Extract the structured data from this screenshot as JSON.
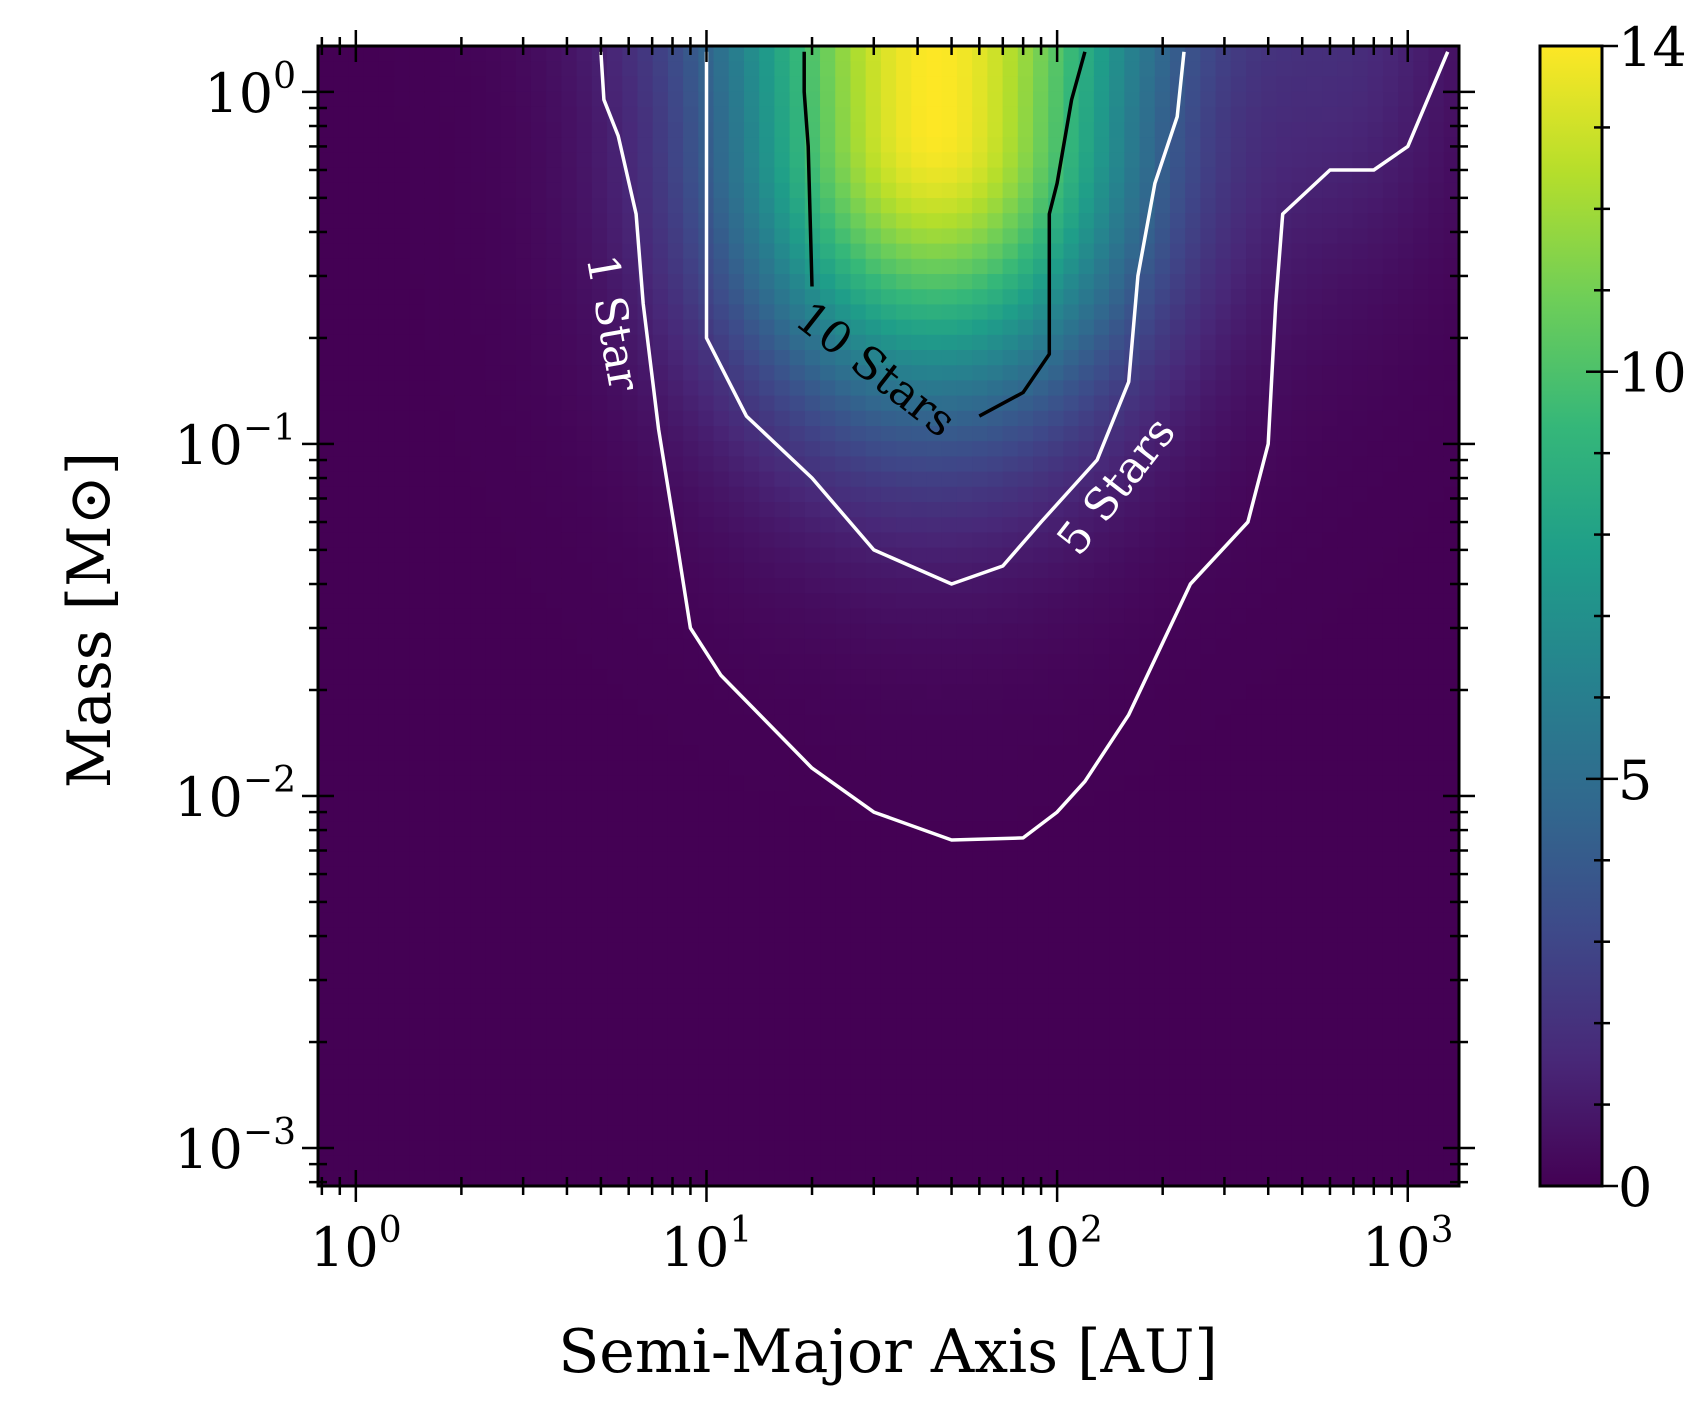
{
  "chart_data": {
    "type": "heatmap",
    "title": "",
    "xlabel": "Semi-Major Axis [AU]",
    "ylabel": "Mass [M⊙]",
    "x_scale": "log",
    "y_scale": "log",
    "xlim": [
      0.78,
      1400
    ],
    "ylim": [
      0.00078,
      1.35
    ],
    "x_ticks": [
      {
        "value": 1,
        "label": "10",
        "exp": "0"
      },
      {
        "value": 10,
        "label": "10",
        "exp": "1"
      },
      {
        "value": 100,
        "label": "10",
        "exp": "2"
      },
      {
        "value": 1000,
        "label": "10",
        "exp": "3"
      }
    ],
    "y_ticks": [
      {
        "value": 0.001,
        "label": "10",
        "exp": "−3"
      },
      {
        "value": 0.01,
        "label": "10",
        "exp": "−2"
      },
      {
        "value": 0.1,
        "label": "10",
        "exp": "−1"
      },
      {
        "value": 1,
        "label": "10",
        "exp": "0"
      }
    ],
    "colorbar": {
      "colormap": "viridis",
      "range": [
        0,
        14
      ],
      "ticks": [
        {
          "value": 0,
          "label": "0"
        },
        {
          "value": 5,
          "label": "5"
        },
        {
          "value": 10,
          "label": "10"
        },
        {
          "value": 14,
          "label": "14"
        }
      ],
      "stops": [
        "#440154",
        "#482878",
        "#3e4989",
        "#31688e",
        "#26828e",
        "#1f9e89",
        "#35b779",
        "#6ece58",
        "#b5de2b",
        "#fde725"
      ]
    },
    "peak": {
      "x": 45,
      "y": 0.8,
      "value": 14
    },
    "contours": [
      {
        "label": "1 Star",
        "level": 1,
        "color": "#ffffff",
        "points": [
          [
            5,
            1.3
          ],
          [
            5.1,
            0.95
          ],
          [
            5.6,
            0.75
          ],
          [
            6.3,
            0.45
          ],
          [
            6.6,
            0.25
          ],
          [
            7.3,
            0.11
          ],
          [
            8.3,
            0.05
          ],
          [
            9,
            0.03
          ],
          [
            11,
            0.022
          ],
          [
            20,
            0.012
          ],
          [
            30,
            0.009
          ],
          [
            50,
            0.0075
          ],
          [
            80,
            0.0076
          ],
          [
            100,
            0.009
          ],
          [
            120,
            0.011
          ],
          [
            160,
            0.017
          ],
          [
            240,
            0.04
          ],
          [
            350,
            0.06
          ],
          [
            400,
            0.1
          ],
          [
            420,
            0.25
          ],
          [
            440,
            0.45
          ],
          [
            600,
            0.6
          ],
          [
            800,
            0.6
          ],
          [
            1000,
            0.7
          ],
          [
            1300,
            1.3
          ]
        ]
      },
      {
        "label": "5 Stars",
        "level": 5,
        "color": "#ffffff",
        "points": [
          [
            10,
            1.3
          ],
          [
            10,
            0.2
          ],
          [
            13,
            0.12
          ],
          [
            20,
            0.08
          ],
          [
            30,
            0.05
          ],
          [
            50,
            0.04
          ],
          [
            70,
            0.045
          ],
          [
            90,
            0.06
          ],
          [
            130,
            0.09
          ],
          [
            160,
            0.15
          ],
          [
            170,
            0.3
          ],
          [
            190,
            0.55
          ],
          [
            220,
            0.85
          ],
          [
            230,
            1.3
          ]
        ]
      },
      {
        "label": "10 Stars",
        "level": 10,
        "color": "#000000",
        "segments": [
          [
            [
              19,
              1.3
            ],
            [
              19,
              1.0
            ],
            [
              19.5,
              0.7
            ],
            [
              20,
              0.28
            ]
          ],
          [
            [
              60,
              0.12
            ],
            [
              80,
              0.14
            ],
            [
              95,
              0.18
            ],
            [
              95,
              0.45
            ],
            [
              100,
              0.55
            ],
            [
              110,
              0.95
            ],
            [
              120,
              1.3
            ]
          ]
        ]
      }
    ],
    "contour_labels": [
      {
        "text": "1 Star",
        "x": 5.3,
        "y": 0.22,
        "angle": 80,
        "color": "#ffffff"
      },
      {
        "text": "5 Stars",
        "x": 150,
        "y": 0.075,
        "angle": -52,
        "color": "#ffffff"
      },
      {
        "text": "10 Stars",
        "x": 30,
        "y": 0.16,
        "angle": 38,
        "color": "#000000"
      }
    ]
  }
}
